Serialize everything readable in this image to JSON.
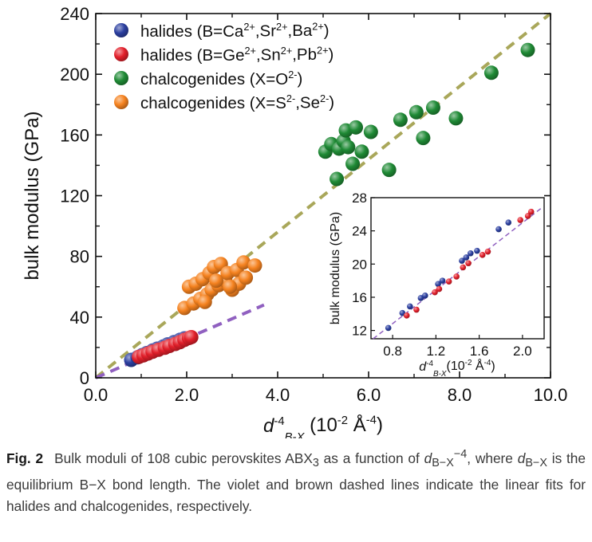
{
  "chart_data": {
    "type": "scatter",
    "main": {
      "xlabel_base": "d",
      "xlabel_sub": "B-X",
      "xlabel_sup": "-4",
      "xlabel_unit": "(10",
      "xlabel_unit_sup": "-2",
      "xlabel_unit_tail": " Å",
      "xlabel_unit_sup2": "-4",
      "xlabel_close": ")",
      "ylabel": "bulk modulus (GPa)",
      "xlim": [
        0,
        10
      ],
      "ylim": [
        0,
        240
      ],
      "xticks": [
        "0.0",
        "2.0",
        "4.0",
        "6.0",
        "8.0",
        "10.0"
      ],
      "yticks": [
        "0",
        "40",
        "80",
        "120",
        "160",
        "200",
        "240"
      ],
      "series": [
        {
          "name": "halides_ca",
          "legend_parts": [
            "halides (B=Ca",
            "2+",
            ",Sr",
            "2+",
            ",Ba",
            "2+",
            ")"
          ],
          "color": "#2b3fa0",
          "points": [
            [
              0.78,
              11.8
            ],
            [
              0.92,
              13.5
            ],
            [
              1.02,
              15.0
            ],
            [
              1.12,
              16.3
            ],
            [
              1.25,
              18.0
            ],
            [
              1.35,
              19.2
            ],
            [
              1.48,
              20.6
            ],
            [
              1.58,
              22.0
            ],
            [
              1.72,
              23.5
            ],
            [
              1.85,
              25.0
            ],
            [
              1.95,
              26.0
            ]
          ]
        },
        {
          "name": "halides_ge",
          "legend_parts": [
            "halides (B=Ge",
            "2+",
            ",Sn",
            "2+",
            ",Pb",
            "2+",
            ")"
          ],
          "color": "#e3202b",
          "points": [
            [
              0.95,
              13.8
            ],
            [
              1.05,
              14.8
            ],
            [
              1.15,
              16.0
            ],
            [
              1.25,
              17.2
            ],
            [
              1.38,
              18.5
            ],
            [
              1.52,
              19.8
            ],
            [
              1.62,
              21.0
            ],
            [
              1.75,
              22.3
            ],
            [
              1.85,
              23.5
            ],
            [
              1.95,
              25.0
            ],
            [
              2.05,
              26.2
            ],
            [
              2.1,
              26.8
            ]
          ]
        },
        {
          "name": "chalcogenides_o",
          "legend_parts": [
            "chalcogenides (X=O",
            "2-",
            ")"
          ],
          "color": "#1f8a35",
          "points": [
            [
              5.05,
              149
            ],
            [
              5.18,
              154
            ],
            [
              5.3,
              131
            ],
            [
              5.35,
              151
            ],
            [
              5.45,
              156
            ],
            [
              5.5,
              163
            ],
            [
              5.55,
              152
            ],
            [
              5.65,
              141
            ],
            [
              5.72,
              165
            ],
            [
              5.85,
              149
            ],
            [
              6.05,
              162
            ],
            [
              6.45,
              137
            ],
            [
              6.7,
              170
            ],
            [
              7.05,
              175
            ],
            [
              7.2,
              158
            ],
            [
              7.42,
              178
            ],
            [
              7.92,
              171
            ],
            [
              8.7,
              201
            ],
            [
              9.5,
              216
            ]
          ]
        },
        {
          "name": "chalcogenides_s",
          "legend_parts": [
            "chalcogenides (X=S",
            "2-",
            ",Se",
            "2-",
            ")"
          ],
          "color": "#f5821f",
          "points": [
            [
              1.95,
              46
            ],
            [
              2.05,
              60
            ],
            [
              2.15,
              49
            ],
            [
              2.2,
              62
            ],
            [
              2.3,
              52
            ],
            [
              2.35,
              65
            ],
            [
              2.45,
              55
            ],
            [
              2.5,
              69
            ],
            [
              2.55,
              58
            ],
            [
              2.6,
              73
            ],
            [
              2.7,
              61
            ],
            [
              2.75,
              75
            ],
            [
              2.85,
              64
            ],
            [
              2.9,
              69
            ],
            [
              3.0,
              58
            ],
            [
              3.1,
              71
            ],
            [
              3.15,
              62
            ],
            [
              3.25,
              76
            ],
            [
              3.3,
              66
            ],
            [
              3.5,
              74
            ],
            [
              2.4,
              50
            ],
            [
              2.65,
              64
            ],
            [
              2.95,
              60
            ]
          ]
        }
      ],
      "fits": [
        {
          "name": "chalcogenide_fit",
          "color": "#a9a75a",
          "x": [
            0,
            10
          ],
          "y": [
            0,
            240
          ]
        },
        {
          "name": "halide_fit",
          "color": "#9060c0",
          "x": [
            0,
            3.7
          ],
          "y": [
            0,
            48
          ]
        }
      ]
    },
    "inset": {
      "xlabel_base": "d",
      "xlabel_sub": "B-X",
      "xlabel_sup": "-4",
      "xlabel_unit": "(10",
      "xlabel_unit_sup": "-2",
      "xlabel_unit_tail": " Å",
      "xlabel_unit_sup2": "-4",
      "xlabel_close": ")",
      "ylabel": "bulk modulus (GPa)",
      "xlim": [
        0.6,
        2.2
      ],
      "ylim": [
        11,
        28
      ],
      "xticks": [
        "0.8",
        "1.2",
        "1.6",
        "2.0"
      ],
      "yticks": [
        "12",
        "16",
        "20",
        "24",
        "28"
      ],
      "fit": {
        "color": "#9060c0",
        "x": [
          0.62,
          2.18
        ],
        "y": [
          11.0,
          26.8
        ]
      },
      "series": [
        {
          "name": "halides_ca",
          "color": "#2b3fa0",
          "points": [
            [
              0.76,
              12.3
            ],
            [
              0.89,
              14.1
            ],
            [
              0.96,
              14.9
            ],
            [
              1.06,
              15.9
            ],
            [
              1.1,
              16.2
            ],
            [
              1.22,
              17.6
            ],
            [
              1.26,
              18.0
            ],
            [
              1.44,
              20.4
            ],
            [
              1.48,
              20.8
            ],
            [
              1.52,
              21.3
            ],
            [
              1.58,
              21.6
            ],
            [
              1.78,
              24.2
            ],
            [
              1.87,
              25.0
            ]
          ]
        },
        {
          "name": "halides_ge",
          "color": "#e3202b",
          "points": [
            [
              0.93,
              13.8
            ],
            [
              1.02,
              14.5
            ],
            [
              1.19,
              16.6
            ],
            [
              1.23,
              17.0
            ],
            [
              1.32,
              17.9
            ],
            [
              1.39,
              18.5
            ],
            [
              1.45,
              19.6
            ],
            [
              1.5,
              20.1
            ],
            [
              1.63,
              21.1
            ],
            [
              1.68,
              21.5
            ],
            [
              1.98,
              25.3
            ],
            [
              2.05,
              25.8
            ],
            [
              2.08,
              26.3
            ]
          ]
        }
      ]
    }
  },
  "caption": {
    "label": "Fig. 2",
    "p1": "Bulk moduli of 108 cubic perovskites ABX",
    "sub3": "3",
    "p2": " as a function of ",
    "d": "d",
    "sub_bx": "B−X",
    "sup_m4": "−4",
    "p3": ", where ",
    "p4": " is the equilibrium B−X bond length. The violet and brown dashed lines indicate the linear fits for halides and chalcogenides, respectively."
  }
}
